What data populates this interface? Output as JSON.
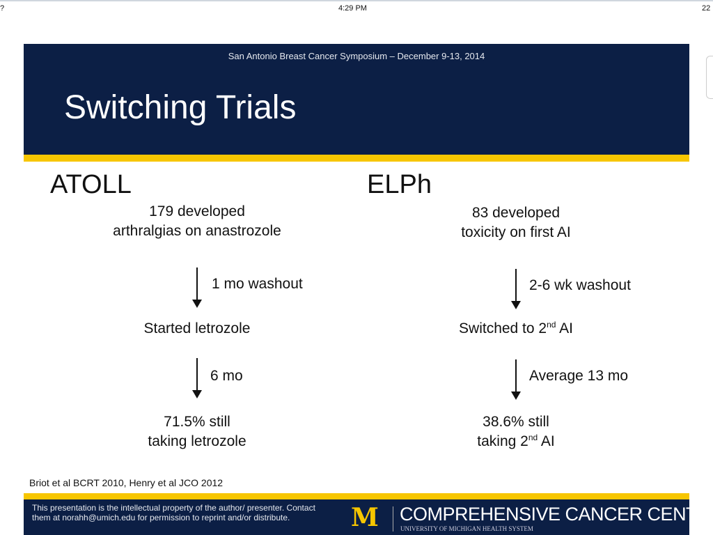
{
  "status_bar": {
    "left": "?",
    "time": "4:29 PM",
    "right": "22"
  },
  "slide": {
    "conference": "San Antonio Breast Cancer Symposium – December 9-13, 2014",
    "title": "Switching Trials",
    "atoll": {
      "heading": "ATOLL",
      "step1_l1": "179 developed",
      "step1_l2": "arthralgias on anastrozole",
      "arrow1": "1 mo washout",
      "step2": "Started letrozole",
      "arrow2": "6 mo",
      "step3_l1": "71.5% still",
      "step3_l2": "taking letrozole"
    },
    "elph": {
      "heading": "ELPh",
      "step1_l1": "83 developed",
      "step1_l2": "toxicity on first AI",
      "arrow1": "2-6 wk washout",
      "step2_pre": "Switched to 2",
      "step2_sup": "nd",
      "step2_post": " AI",
      "arrow2": "Average 13 mo",
      "step3_l1": "38.6% still",
      "step3_pre": "taking 2",
      "step3_sup": "nd",
      "step3_post": " AI"
    },
    "citation": "Briot et al BCRT 2010, Henry et al JCO 2012",
    "footer": {
      "legal": "This presentation is the intellectual property of the author/ presenter. Contact them at norahh@umich.edu for permission to reprint and/or distribute.",
      "logo_letter": "M",
      "center_name": "COMPREHENSIVE CANCER CENTER",
      "system_name": "UNIVERSITY OF MICHIGAN HEALTH SYSTEM"
    }
  },
  "colors": {
    "navy": "#0c1f45",
    "maize": "#f7c600"
  }
}
